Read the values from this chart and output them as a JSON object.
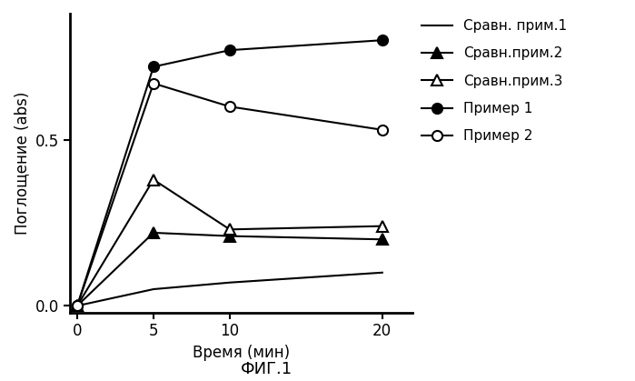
{
  "x": [
    0,
    5,
    10,
    20
  ],
  "series": [
    {
      "label": "Сравн. прим.1",
      "y": [
        0.0,
        0.05,
        0.07,
        0.1
      ],
      "color": "black",
      "marker": "None",
      "linestyle": "-",
      "linewidth": 1.5,
      "markersize": 0,
      "markerfacecolor": "black"
    },
    {
      "label": "Сравн.прим.2",
      "y": [
        0.0,
        0.22,
        0.21,
        0.2
      ],
      "color": "black",
      "marker": "^",
      "linestyle": "-",
      "linewidth": 1.5,
      "markersize": 8,
      "markerfacecolor": "black"
    },
    {
      "label": "Сравн.прим.3",
      "y": [
        0.0,
        0.38,
        0.23,
        0.24
      ],
      "color": "black",
      "marker": "^",
      "linestyle": "-",
      "linewidth": 1.5,
      "markersize": 8,
      "markerfacecolor": "white"
    },
    {
      "label": "Пример 1",
      "y": [
        0.0,
        0.72,
        0.77,
        0.8
      ],
      "color": "black",
      "marker": "o",
      "linestyle": "-",
      "linewidth": 1.5,
      "markersize": 8,
      "markerfacecolor": "black"
    },
    {
      "label": "Пример 2",
      "y": [
        0.0,
        0.67,
        0.6,
        0.53
      ],
      "color": "black",
      "marker": "o",
      "linestyle": "-",
      "linewidth": 1.5,
      "markersize": 8,
      "markerfacecolor": "white"
    }
  ],
  "xlabel": "Время (мин)",
  "ylabel": "Поглощение (abs)",
  "xlim": [
    -0.5,
    22
  ],
  "ylim": [
    -0.02,
    0.88
  ],
  "xticks": [
    0,
    5,
    10,
    20
  ],
  "yticks": [
    0.0,
    0.5
  ],
  "caption": "ФИГ.1",
  "background_color": "#ffffff"
}
